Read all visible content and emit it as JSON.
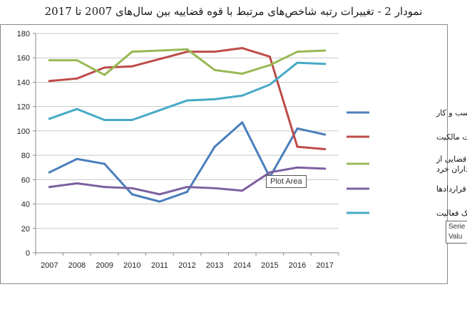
{
  "title": "نمودار 2 - تغییرات رتبه شاخص‌های مرتبط با قوه قضاییه بین سال‌های 2007 تا 2017",
  "tooltip": "Plot Area",
  "series_tooltip": [
    "Serie",
    "Valu"
  ],
  "colors": {
    "grid": "#c8c8c8",
    "axis": "#888888"
  },
  "chart_data": {
    "type": "line",
    "title": "نمودار 2 - تغییرات رتبه شاخص‌های مرتبط با قوه قضاییه بین سال‌های 2007 تا 2017",
    "x": [
      "2007",
      "2008",
      "2009",
      "2010",
      "2011",
      "2012",
      "2013",
      "2014",
      "2015",
      "2016",
      "2017"
    ],
    "ylim": [
      0,
      180
    ],
    "yticks": [
      0,
      20,
      40,
      60,
      80,
      100,
      120,
      140,
      160,
      180
    ],
    "grid": true,
    "legend_position": "right",
    "series": [
      {
        "name": "سهولت شروع کسب و کار",
        "color": "#4a7ebb",
        "values": [
          66,
          77,
          73,
          48,
          42,
          50,
          87,
          107,
          62,
          102,
          97
        ]
      },
      {
        "name": "ثبت مالکیت",
        "color": "#be4b48",
        "values": [
          141,
          143,
          152,
          153,
          159,
          165,
          165,
          168,
          161,
          87,
          85
        ]
      },
      {
        "name": "حمایت قضایی از سرمایه گذاران خرد",
        "color": "#98b954",
        "values": [
          158,
          158,
          146,
          165,
          166,
          167,
          150,
          147,
          154,
          165,
          166
        ]
      },
      {
        "name": "اجرای قراردادها",
        "color": "#7d60a0",
        "values": [
          54,
          57,
          54,
          53,
          48,
          54,
          53,
          51,
          66,
          70,
          69
        ]
      },
      {
        "name": "انحلال یک فعالیت",
        "color": "#46aac5",
        "values": [
          110,
          118,
          109,
          109,
          117,
          125,
          126,
          129,
          138,
          156,
          155
        ]
      }
    ]
  }
}
